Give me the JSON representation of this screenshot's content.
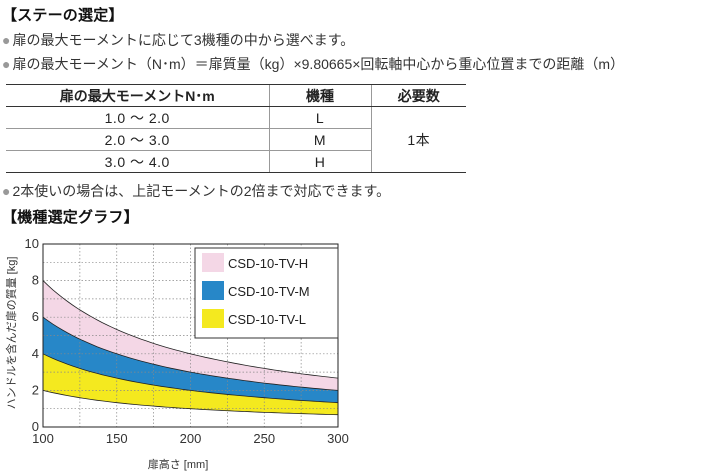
{
  "section1": {
    "title": "【ステーの選定】",
    "note1": "扉の最大モーメントに応じて3機種の中から選べます。",
    "note2": "扉の最大モーメント（N･m）＝扉質量（kg）×9.80665×回転軸中心から重心位置までの距離（m）"
  },
  "table": {
    "headers": [
      "扉の最大モーメントN･m",
      "機種",
      "必要数"
    ],
    "rows": [
      {
        "range": "1.0 ～ 2.0",
        "model": "L"
      },
      {
        "range": "2.0 ～ 3.0",
        "model": "M"
      },
      {
        "range": "3.0 ～ 4.0",
        "model": "H"
      }
    ],
    "quantity": "1本"
  },
  "note3": "2本使いの場合は、上記モーメントの2倍まで対応できます。",
  "bullet_glyph": "●",
  "section2": {
    "title": "【機種選定グラフ】"
  },
  "chart_data": {
    "type": "area",
    "xlabel": "扉高さ [mm]",
    "ylabel": "ハンドルを含んだ扉の質量 [kg]",
    "xlim": [
      100,
      300
    ],
    "ylim": [
      0,
      10
    ],
    "xticks": [
      100,
      150,
      200,
      250,
      300
    ],
    "yticks": [
      0,
      2,
      4,
      6,
      8,
      10
    ],
    "grid": true,
    "legend_position": "top-right",
    "x": [
      100,
      125,
      150,
      175,
      200,
      225,
      250,
      275,
      300
    ],
    "series": [
      {
        "name": "CSD-10-TV-H",
        "color": "#f4d7e6",
        "lower": [
          6.0,
          4.8,
          4.0,
          3.43,
          3.0,
          2.67,
          2.4,
          2.18,
          2.0
        ],
        "upper": [
          8.0,
          6.4,
          5.33,
          4.57,
          4.0,
          3.56,
          3.2,
          2.91,
          2.67
        ]
      },
      {
        "name": "CSD-10-TV-M",
        "color": "#2787c8",
        "lower": [
          4.0,
          3.2,
          2.67,
          2.29,
          2.0,
          1.78,
          1.6,
          1.45,
          1.33
        ],
        "upper": [
          6.0,
          4.8,
          4.0,
          3.43,
          3.0,
          2.67,
          2.4,
          2.18,
          2.0
        ]
      },
      {
        "name": "CSD-10-TV-L",
        "color": "#f4e91f",
        "lower": [
          2.0,
          1.6,
          1.33,
          1.14,
          1.0,
          0.89,
          0.8,
          0.73,
          0.67
        ],
        "upper": [
          4.0,
          3.2,
          2.67,
          2.29,
          2.0,
          1.78,
          1.6,
          1.45,
          1.33
        ]
      }
    ]
  }
}
